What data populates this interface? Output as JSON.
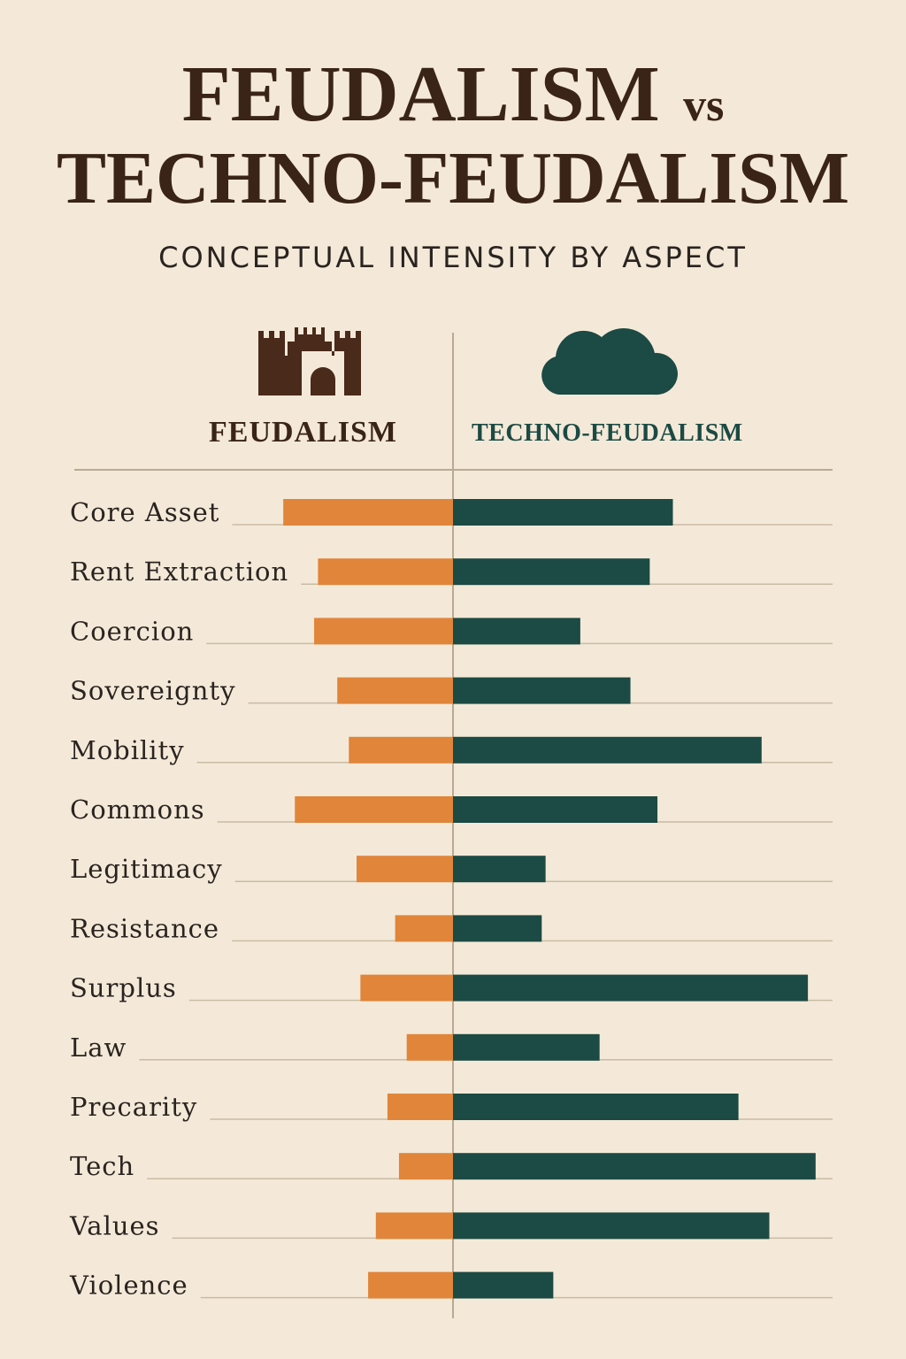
{
  "title": {
    "part1": "FEUDALISM",
    "vs": "vs",
    "part2": "TECHNO-FEUDALISM"
  },
  "subtitle": "CONCEPTUAL INTENSITY BY ASPECT",
  "icons": {
    "left": "castle-icon",
    "right": "cloud-icon"
  },
  "colors": {
    "background": "#f4e9d8",
    "feudalism": "#e0853a",
    "techno_feudalism": "#1c4a44",
    "title": "#3a2418",
    "axis": "#b8ab93"
  },
  "chart_data": {
    "type": "bar",
    "orientation": "horizontal-diverging",
    "title": "FEUDALISM vs TECHNO-FEUDALISM",
    "subtitle": "CONCEPTUAL INTENSITY BY ASPECT",
    "categories": [
      "Core Asset",
      "Rent Extraction",
      "Coercion",
      "Sovereignty",
      "Mobility",
      "Commons",
      "Legitimacy",
      "Resistance",
      "Surplus",
      "Law",
      "Precarity",
      "Tech",
      "Values",
      "Violence"
    ],
    "series": [
      {
        "name": "FEUDALISM",
        "side": "left",
        "color": "#e0853a",
        "values": [
          4.4,
          3.5,
          3.6,
          3.0,
          2.7,
          4.1,
          2.5,
          1.5,
          2.4,
          1.2,
          1.7,
          1.4,
          2.0,
          2.2
        ]
      },
      {
        "name": "TECHNO-FEUDALISM",
        "side": "right",
        "color": "#1c4a44",
        "values": [
          5.7,
          5.1,
          3.3,
          4.6,
          8.0,
          5.3,
          2.4,
          2.3,
          9.2,
          3.8,
          7.4,
          9.4,
          8.2,
          2.6
        ]
      }
    ],
    "xlim": [
      0,
      10
    ],
    "grid": false,
    "legend": "top"
  }
}
